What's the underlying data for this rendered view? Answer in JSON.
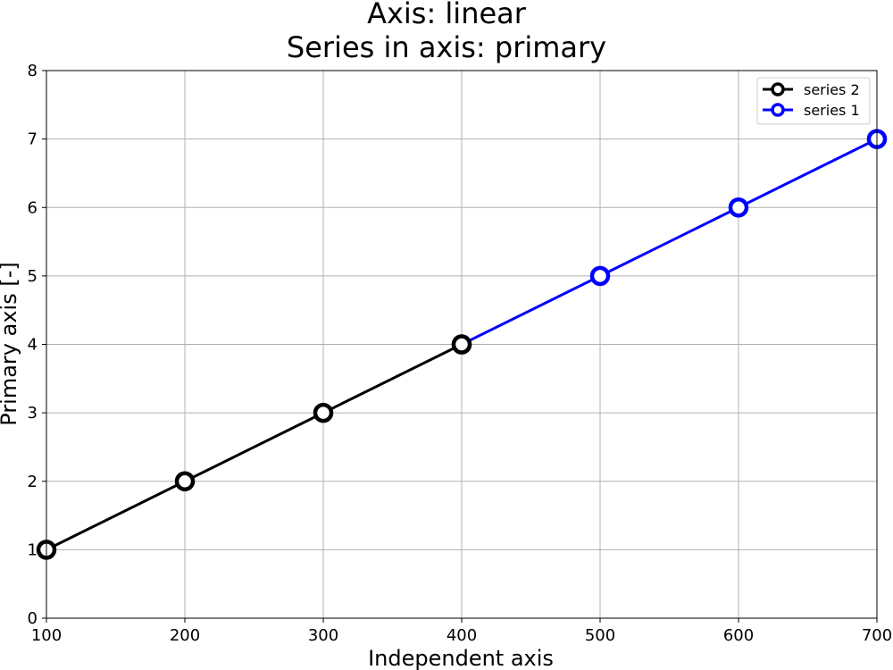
{
  "chart_data": {
    "type": "line",
    "title": "Axis: linear",
    "subtitle": "Series in axis: primary",
    "xlabel": "Independent axis",
    "ylabel": "Primary axis [-]",
    "xlim": [
      100,
      700
    ],
    "ylim": [
      0,
      8
    ],
    "x_ticks": [
      "100",
      "200",
      "300",
      "400",
      "500",
      "600",
      "700"
    ],
    "y_ticks": [
      "0",
      "1",
      "2",
      "3",
      "4",
      "5",
      "6",
      "7",
      "8"
    ],
    "x_tick_values": [
      100,
      200,
      300,
      400,
      500,
      600,
      700
    ],
    "y_tick_values": [
      0,
      1,
      2,
      3,
      4,
      5,
      6,
      7,
      8
    ],
    "grid": true,
    "legend_position": "top-right",
    "series": [
      {
        "name": "series 1",
        "color": "#0000ff",
        "x": [
          400,
          500,
          600,
          700
        ],
        "values": [
          4,
          5,
          6,
          7
        ]
      },
      {
        "name": "series 2",
        "color": "#000000",
        "x": [
          100,
          200,
          300,
          400
        ],
        "values": [
          1,
          2,
          3,
          4
        ]
      }
    ],
    "legend_order": [
      "series 2",
      "series 1"
    ]
  }
}
